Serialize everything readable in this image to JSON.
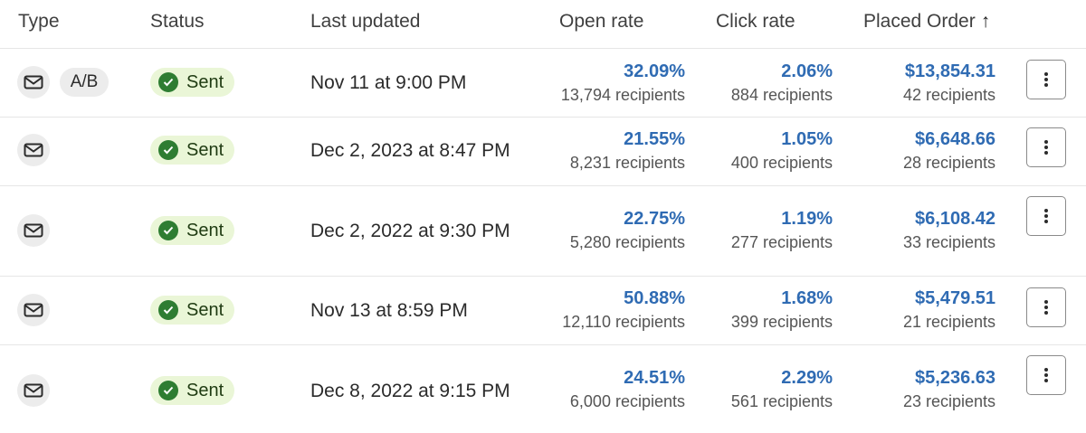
{
  "header": {
    "type": "Type",
    "status": "Status",
    "last_updated": "Last updated",
    "open_rate": "Open rate",
    "click_rate": "Click rate",
    "placed_order": "Placed Order",
    "sort_arrow": "↑"
  },
  "rows": [
    {
      "ab_label": "A/B",
      "status": "Sent",
      "date": "Nov 11 at 9:00 PM",
      "open_rate": "32.09%",
      "open_recipients": "13,794 recipients",
      "click_rate": "2.06%",
      "click_recipients": "884 recipients",
      "placed_order": "$13,854.31",
      "order_recipients": "42 recipients"
    },
    {
      "ab_label": "",
      "status": "Sent",
      "date": "Dec 2, 2023 at 8:47 PM",
      "open_rate": "21.55%",
      "open_recipients": "8,231 recipients",
      "click_rate": "1.05%",
      "click_recipients": "400 recipients",
      "placed_order": "$6,648.66",
      "order_recipients": "28 recipients"
    },
    {
      "ab_label": "",
      "status": "Sent",
      "date": "Dec 2, 2022 at 9:30 PM",
      "open_rate": "22.75%",
      "open_recipients": "5,280 recipients",
      "click_rate": "1.19%",
      "click_recipients": "277 recipients",
      "placed_order": "$6,108.42",
      "order_recipients": "33 recipients"
    },
    {
      "ab_label": "",
      "status": "Sent",
      "date": "Nov 13 at 8:59 PM",
      "open_rate": "50.88%",
      "open_recipients": "12,110 recipients",
      "click_rate": "1.68%",
      "click_recipients": "399 recipients",
      "placed_order": "$5,479.51",
      "order_recipients": "21 recipients"
    },
    {
      "ab_label": "",
      "status": "Sent",
      "date": "Dec 8, 2022 at 9:15 PM",
      "open_rate": "24.51%",
      "open_recipients": "6,000 recipients",
      "click_rate": "2.29%",
      "click_recipients": "561 recipients",
      "placed_order": "$5,236.63",
      "order_recipients": "23 recipients"
    }
  ],
  "icons": {
    "type": "envelope-icon",
    "status": "check-circle-icon",
    "menu": "vertical-ellipsis-icon"
  },
  "colors": {
    "metric_value": "#2f6bb3",
    "status_bg": "#eaf6d7",
    "status_check": "#2e7d32"
  }
}
